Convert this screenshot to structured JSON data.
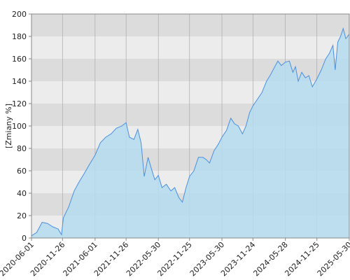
{
  "chart_data": {
    "type": "area",
    "y_label": "[Zmiany %]",
    "series": [
      {
        "color": "#4a90e2",
        "fill": "#b4dcee",
        "x": [
          "2020-06-01",
          "2020-07-01",
          "2020-08-01",
          "2020-09-01",
          "2020-10-01",
          "2020-11-01",
          "2020-11-20",
          "2020-12-01",
          "2021-01-01",
          "2021-02-01",
          "2021-03-01",
          "2021-04-01",
          "2021-05-01",
          "2021-06-01",
          "2021-07-01",
          "2021-08-01",
          "2021-09-01",
          "2021-10-01",
          "2021-11-01",
          "2021-11-26",
          "2021-12-15",
          "2022-01-10",
          "2022-02-01",
          "2022-02-20",
          "2022-03-10",
          "2022-04-01",
          "2022-04-20",
          "2022-05-10",
          "2022-05-30",
          "2022-06-20",
          "2022-07-15",
          "2022-08-10",
          "2022-09-01",
          "2022-09-25",
          "2022-10-15",
          "2022-11-05",
          "2022-11-25",
          "2022-12-20",
          "2023-01-15",
          "2023-02-10",
          "2023-03-01",
          "2023-03-20",
          "2023-04-15",
          "2023-05-10",
          "2023-05-30",
          "2023-06-25",
          "2023-07-20",
          "2023-08-10",
          "2023-09-01",
          "2023-09-25",
          "2023-10-15",
          "2023-11-05",
          "2023-11-24",
          "2023-12-20",
          "2024-01-15",
          "2024-02-10",
          "2024-03-01",
          "2024-03-25",
          "2024-04-15",
          "2024-05-05",
          "2024-05-28",
          "2024-06-20",
          "2024-07-10",
          "2024-07-25",
          "2024-08-10",
          "2024-08-30",
          "2024-09-20",
          "2024-10-10",
          "2024-10-30",
          "2024-11-25",
          "2024-12-20",
          "2025-01-15",
          "2025-02-05",
          "2025-02-25",
          "2025-03-10",
          "2025-03-25",
          "2025-04-10",
          "2025-04-25",
          "2025-05-10",
          "2025-05-30"
        ],
        "values": [
          2,
          5,
          14,
          13,
          10,
          8,
          3,
          18,
          28,
          42,
          50,
          58,
          66,
          74,
          85,
          90,
          93,
          98,
          100,
          103,
          90,
          88,
          97,
          85,
          55,
          72,
          62,
          52,
          56,
          45,
          48,
          42,
          45,
          36,
          32,
          45,
          55,
          60,
          72,
          72,
          70,
          67,
          78,
          84,
          90,
          96,
          107,
          102,
          100,
          93,
          100,
          112,
          118,
          124,
          130,
          140,
          145,
          152,
          158,
          154,
          157,
          158,
          148,
          153,
          140,
          148,
          143,
          145,
          135,
          142,
          150,
          160,
          165,
          172,
          150,
          175,
          180,
          187,
          178,
          182
        ]
      }
    ],
    "xlim": [
      "2020-06-01",
      "2025-05-30"
    ],
    "xticks": [
      "2020-06-01",
      "2020-11-26",
      "2021-06-01",
      "2021-11-26",
      "2022-05-30",
      "2022-11-25",
      "2023-05-30",
      "2023-11-24",
      "2024-05-28",
      "2024-11-25",
      "2025-05-30"
    ],
    "ylim": [
      0,
      200
    ],
    "yticks": [
      0,
      20,
      40,
      60,
      80,
      100,
      120,
      140,
      160,
      180,
      200
    ],
    "band_colors": [
      "#ececec",
      "#dcdcdc"
    ]
  }
}
